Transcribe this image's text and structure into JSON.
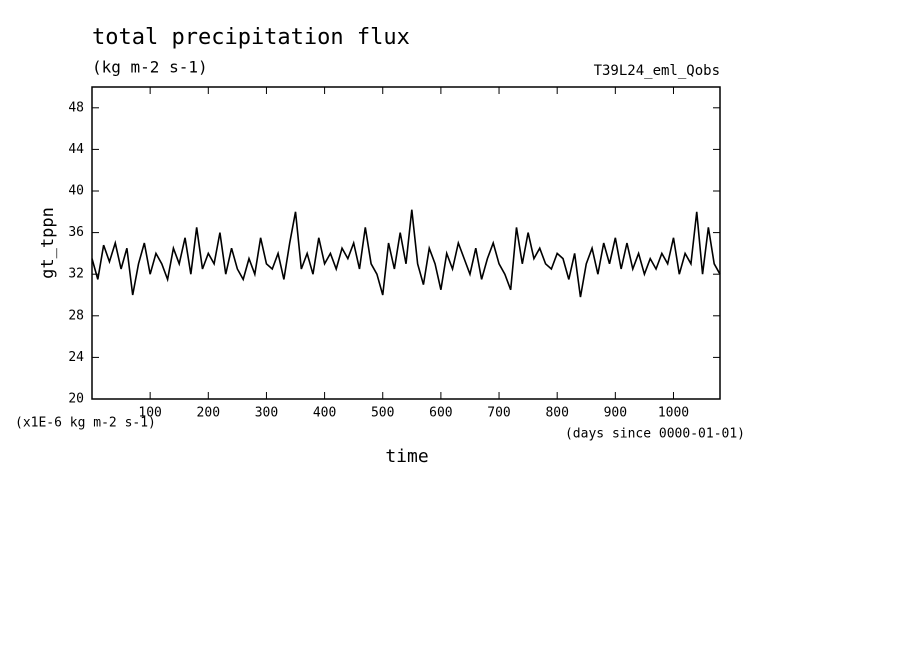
{
  "chart_data": {
    "type": "line",
    "title": "total precipitation flux",
    "subtitle": "(kg m-2 s-1)",
    "annotation": "T39L24_eml_Qobs",
    "y_label": "gt_tppn",
    "x_label": "time",
    "y_unit": "(x1E-6 kg m-2 s-1)",
    "x_unit": "(days since 0000-01-01)",
    "color": "#000000",
    "xlim": [
      0,
      1080
    ],
    "ylim": [
      20,
      50
    ],
    "xticks": [
      100,
      200,
      300,
      400,
      500,
      600,
      700,
      800,
      900,
      1000
    ],
    "yticks": [
      20,
      24,
      28,
      32,
      36,
      40,
      44,
      48
    ],
    "x": [
      0,
      10,
      20,
      30,
      40,
      50,
      60,
      70,
      80,
      90,
      100,
      110,
      120,
      130,
      140,
      150,
      160,
      170,
      180,
      190,
      200,
      210,
      220,
      230,
      240,
      250,
      260,
      270,
      280,
      290,
      300,
      310,
      320,
      330,
      340,
      350,
      360,
      370,
      380,
      390,
      400,
      410,
      420,
      430,
      440,
      450,
      460,
      470,
      480,
      490,
      500,
      510,
      520,
      530,
      540,
      550,
      560,
      570,
      580,
      590,
      600,
      610,
      620,
      630,
      640,
      650,
      660,
      670,
      680,
      690,
      700,
      710,
      720,
      730,
      740,
      750,
      760,
      770,
      780,
      790,
      800,
      810,
      820,
      830,
      840,
      850,
      860,
      870,
      880,
      890,
      900,
      910,
      920,
      930,
      940,
      950,
      960,
      970,
      980,
      990,
      1000,
      1010,
      1020,
      1030,
      1040,
      1050,
      1060,
      1070,
      1080
    ],
    "values": [
      33.5,
      31.5,
      34.8,
      33.2,
      35,
      32.5,
      34.5,
      30,
      33,
      35,
      32,
      34,
      33,
      31.5,
      34.5,
      33,
      35.5,
      32,
      36.5,
      32.5,
      34,
      33,
      36,
      32,
      34.5,
      32.5,
      31.5,
      33.5,
      32,
      35.5,
      33,
      32.5,
      34,
      31.5,
      35,
      38,
      32.5,
      34,
      32,
      35.5,
      33,
      34,
      32.5,
      34.5,
      33.5,
      35,
      32.5,
      36.5,
      33,
      32,
      30,
      35,
      32.5,
      36,
      33,
      38.2,
      33,
      31,
      34.5,
      33,
      30.5,
      34,
      32.5,
      35,
      33.5,
      32,
      34.5,
      31.5,
      33.5,
      35,
      33,
      32,
      30.5,
      36.5,
      33,
      36,
      33.5,
      34.5,
      33,
      32.5,
      34,
      33.5,
      31.5,
      34,
      29.8,
      33,
      34.5,
      32,
      35,
      33,
      35.5,
      32.5,
      35,
      32.5,
      34,
      32,
      33.5,
      32.5,
      34,
      33,
      35.5,
      32,
      34,
      33,
      38,
      32,
      36.5,
      33,
      32
    ]
  }
}
